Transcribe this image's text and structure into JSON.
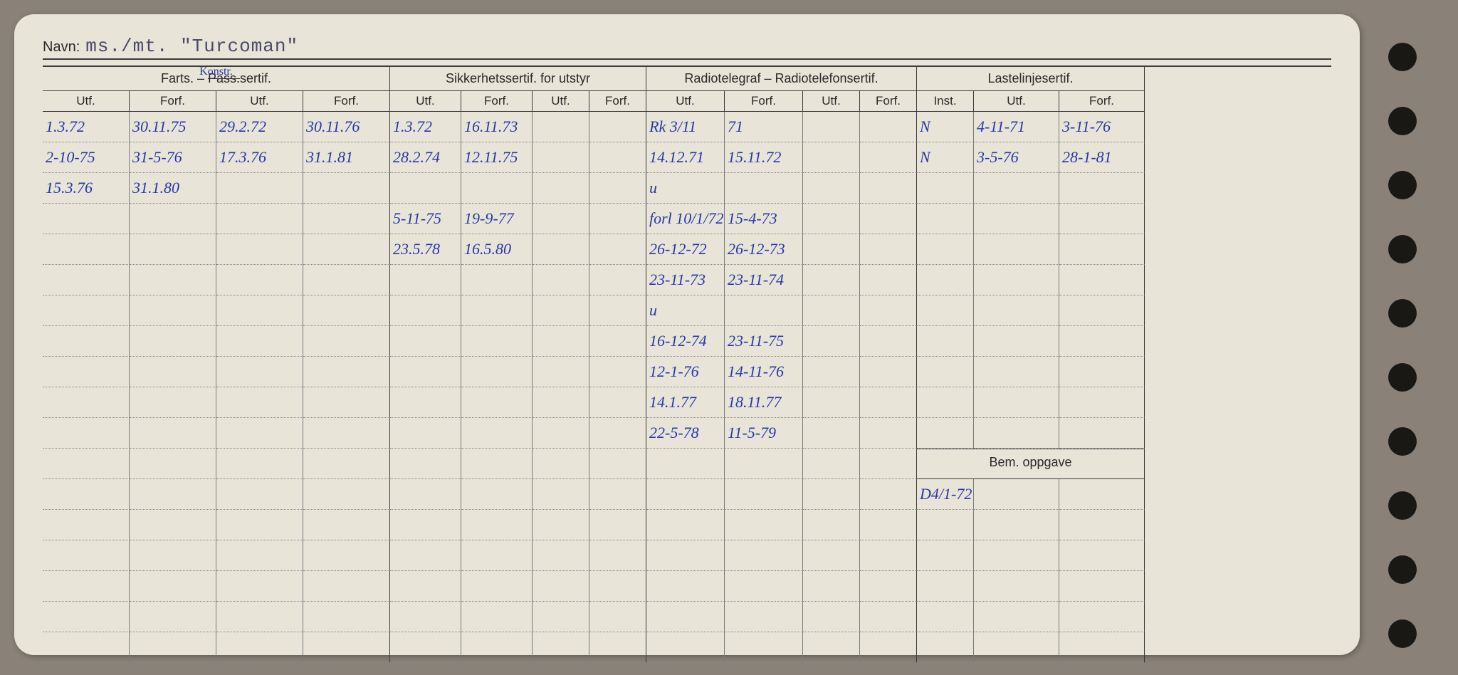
{
  "name_label": "Navn:",
  "name_value": "ms./mt. \"Turcoman\"",
  "headers": {
    "farts": "Farts. – Pass.sertif.",
    "farts_annotation": "Konstr.",
    "sikker": "Sikkerhetssertif. for utstyr",
    "radio": "Radiotelegraf – Radiotelefonsertif.",
    "laste": "Lastelinjesertif.",
    "bem": "Bem. oppgave",
    "utf": "Utf.",
    "forf": "Forf.",
    "inst": "Inst."
  },
  "rows": [
    {
      "c0": "1.3.72",
      "c1": "30.11.75",
      "c2": "29.2.72",
      "c3": "30.11.76",
      "c4": "1.3.72",
      "c5": "16.11.73",
      "c6": "",
      "c7": "",
      "c8": "Rk 3/11",
      "c9": "71",
      "c10": "",
      "c11": "",
      "c12": "N",
      "c13": "4-11-71",
      "c14": "3-11-76"
    },
    {
      "c0": "2-10-75",
      "c1": "31-5-76",
      "c2": "17.3.76",
      "c3": "31.1.81",
      "c4": "28.2.74",
      "c5": "12.11.75",
      "c6": "",
      "c7": "",
      "c8": "14.12.71",
      "c9": "15.11.72",
      "c10": "",
      "c11": "",
      "c12": "N",
      "c13": "3-5-76",
      "c14": "28-1-81"
    },
    {
      "c0": "15.3.76",
      "c1": "31.1.80",
      "c2": "",
      "c3": "",
      "c4": "",
      "c5": "",
      "c6": "",
      "c7": "",
      "c8": "u",
      "c9": "",
      "c10": "",
      "c11": "",
      "c12": "",
      "c13": "",
      "c14": ""
    },
    {
      "c0": "",
      "c1": "",
      "c2": "",
      "c3": "",
      "c4": "5-11-75",
      "c5": "19-9-77",
      "c6": "",
      "c7": "",
      "c8": "forl 10/1/72",
      "c9": "15-4-73",
      "c10": "",
      "c11": "",
      "c12": "",
      "c13": "",
      "c14": ""
    },
    {
      "c0": "",
      "c1": "",
      "c2": "",
      "c3": "",
      "c4": "23.5.78",
      "c5": "16.5.80",
      "c6": "",
      "c7": "",
      "c8": "26-12-72",
      "c9": "26-12-73",
      "c10": "",
      "c11": "",
      "c12": "",
      "c13": "",
      "c14": ""
    },
    {
      "c0": "",
      "c1": "",
      "c2": "",
      "c3": "",
      "c4": "",
      "c5": "",
      "c6": "",
      "c7": "",
      "c8": "23-11-73",
      "c9": "23-11-74",
      "c10": "",
      "c11": "",
      "c12": "",
      "c13": "",
      "c14": ""
    },
    {
      "c0": "",
      "c1": "",
      "c2": "",
      "c3": "",
      "c4": "",
      "c5": "",
      "c6": "",
      "c7": "",
      "c8": "u",
      "c9": "",
      "c10": "",
      "c11": "",
      "c12": "",
      "c13": "",
      "c14": ""
    },
    {
      "c0": "",
      "c1": "",
      "c2": "",
      "c3": "",
      "c4": "",
      "c5": "",
      "c6": "",
      "c7": "",
      "c8": "16-12-74",
      "c9": "23-11-75",
      "c10": "",
      "c11": "",
      "c12": "",
      "c13": "",
      "c14": ""
    },
    {
      "c0": "",
      "c1": "",
      "c2": "",
      "c3": "",
      "c4": "",
      "c5": "",
      "c6": "",
      "c7": "",
      "c8": "12-1-76",
      "c9": "14-11-76",
      "c10": "",
      "c11": "",
      "c12": "",
      "c13": "",
      "c14": ""
    },
    {
      "c0": "",
      "c1": "",
      "c2": "",
      "c3": "",
      "c4": "",
      "c5": "",
      "c6": "",
      "c7": "",
      "c8": "14.1.77",
      "c9": "18.11.77",
      "c10": "",
      "c11": "",
      "c12": "",
      "c13": "",
      "c14": ""
    },
    {
      "c0": "",
      "c1": "",
      "c2": "",
      "c3": "",
      "c4": "",
      "c5": "",
      "c6": "",
      "c7": "",
      "c8": "22-5-78",
      "c9": "11-5-79",
      "c10": "",
      "c11": "",
      "c12": "",
      "c13": "",
      "c14": ""
    }
  ],
  "bem_row": {
    "c12": "D4/1-72",
    "c13": "",
    "c14": ""
  },
  "blank_rows": 5,
  "colors": {
    "ink": "#2838a8",
    "print": "#2a2a2a",
    "card": "#e8e4d8",
    "bg": "#8a8278"
  }
}
